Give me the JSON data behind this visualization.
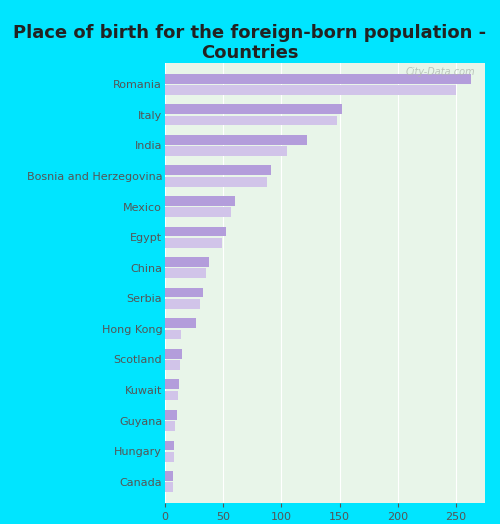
{
  "title": "Place of birth for the foreign-born population -\nCountries",
  "categories": [
    "Romania",
    "Italy",
    "India",
    "Bosnia and Herzegovina",
    "Mexico",
    "Egypt",
    "China",
    "Serbia",
    "Hong Kong",
    "Scotland",
    "Kuwait",
    "Guyana",
    "Hungary",
    "Canada"
  ],
  "values_dark": [
    263,
    152,
    122,
    91,
    60,
    52,
    38,
    33,
    27,
    15,
    12,
    10,
    8,
    7
  ],
  "values_light": [
    250,
    148,
    105,
    88,
    57,
    49,
    35,
    30,
    14,
    13,
    11,
    9,
    8,
    7
  ],
  "bar_color_dark": "#b39ddb",
  "bar_color_light": "#d1c4e9",
  "background_color": "#00e5ff",
  "plot_bg_color": "#e8f5e9",
  "xlim": [
    0,
    275
  ],
  "xticks": [
    0,
    50,
    100,
    150,
    200,
    250
  ],
  "watermark": "City-Data.com",
  "title_fontsize": 13,
  "tick_fontsize": 8,
  "label_fontsize": 8
}
